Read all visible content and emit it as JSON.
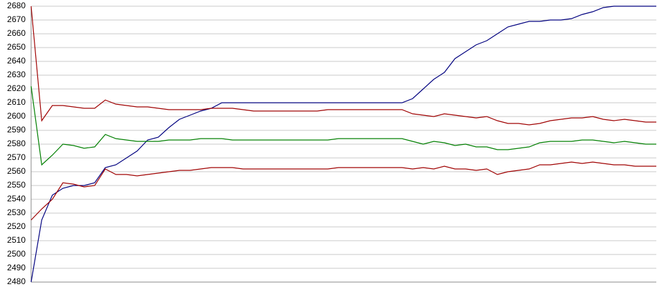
{
  "chart_data": {
    "type": "line",
    "categories": [
      null,
      null,
      null,
      null,
      null,
      null,
      null,
      null,
      null,
      null,
      null,
      null,
      null,
      null,
      null,
      null,
      null,
      null,
      null,
      null,
      null,
      null,
      null,
      null,
      null,
      null,
      null,
      null,
      null,
      null,
      null,
      null,
      null,
      null,
      null,
      null,
      null,
      null,
      null,
      null,
      null,
      null,
      null,
      null,
      null,
      null,
      null,
      null,
      null,
      null,
      null,
      null,
      null,
      null,
      null,
      null,
      null,
      null,
      null,
      null
    ],
    "series": [
      {
        "color": "#00007f",
        "values": [
          2480,
          2525,
          2543,
          2548,
          2550,
          2550,
          2552,
          2563,
          2565,
          2570,
          2575,
          2583,
          2585,
          2592,
          2598,
          2601,
          2604,
          2606,
          2610,
          2610,
          2610,
          2610,
          2610,
          2610,
          2610,
          2610,
          2610,
          2610,
          2610,
          2610,
          2610,
          2610,
          2610,
          2610,
          2610,
          2610,
          2613,
          2620,
          2627,
          2632,
          2642,
          2647,
          2652,
          2655,
          2660,
          2665,
          2667,
          2669,
          2669,
          2670,
          2670,
          2671,
          2674,
          2676,
          2679,
          2680,
          2680,
          2680,
          2680,
          2680
        ]
      },
      {
        "color": "#9f0000",
        "values": [
          2680,
          2597,
          2608,
          2608,
          2607,
          2606,
          2606,
          2612,
          2609,
          2608,
          2607,
          2607,
          2606,
          2605,
          2605,
          2605,
          2605,
          2606,
          2606,
          2606,
          2605,
          2604,
          2604,
          2604,
          2604,
          2604,
          2604,
          2604,
          2605,
          2605,
          2605,
          2605,
          2605,
          2605,
          2605,
          2605,
          2602,
          2601,
          2600,
          2602,
          2601,
          2600,
          2599,
          2600,
          2597,
          2595,
          2595,
          2594,
          2595,
          2597,
          2598,
          2599,
          2599,
          2600,
          2598,
          2597,
          2598,
          2597,
          2596,
          2596
        ]
      },
      {
        "color": "#007f00",
        "values": [
          2622,
          2565,
          2572,
          2580,
          2579,
          2577,
          2578,
          2587,
          2584,
          2583,
          2582,
          2582,
          2582,
          2583,
          2583,
          2583,
          2584,
          2584,
          2584,
          2583,
          2583,
          2583,
          2583,
          2583,
          2583,
          2583,
          2583,
          2583,
          2583,
          2584,
          2584,
          2584,
          2584,
          2584,
          2584,
          2584,
          2582,
          2580,
          2582,
          2581,
          2579,
          2580,
          2578,
          2578,
          2576,
          2576,
          2577,
          2578,
          2581,
          2582,
          2582,
          2582,
          2583,
          2583,
          2582,
          2581,
          2582,
          2581,
          2580,
          2580
        ]
      },
      {
        "color": "#9f0000",
        "values": [
          2525,
          2533,
          2540,
          2552,
          2551,
          2549,
          2550,
          2562,
          2558,
          2558,
          2557,
          2558,
          2559,
          2560,
          2561,
          2561,
          2562,
          2563,
          2563,
          2563,
          2562,
          2562,
          2562,
          2562,
          2562,
          2562,
          2562,
          2562,
          2562,
          2563,
          2563,
          2563,
          2563,
          2563,
          2563,
          2563,
          2562,
          2563,
          2562,
          2564,
          2562,
          2562,
          2561,
          2562,
          2558,
          2560,
          2561,
          2562,
          2565,
          2565,
          2566,
          2567,
          2566,
          2567,
          2566,
          2565,
          2565,
          2564,
          2564,
          2564
        ]
      }
    ],
    "ylim": [
      2480,
      2680
    ],
    "yticks": [
      2480,
      2490,
      2500,
      2510,
      2520,
      2530,
      2540,
      2550,
      2560,
      2570,
      2580,
      2590,
      2600,
      2610,
      2620,
      2630,
      2640,
      2650,
      2660,
      2670,
      2680
    ],
    "grid": true
  }
}
